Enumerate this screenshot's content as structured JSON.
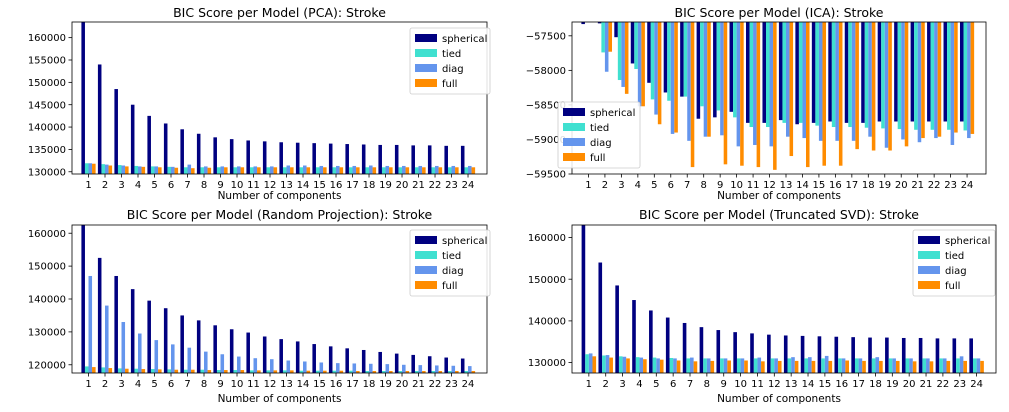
{
  "chart_data": [
    {
      "type": "bar",
      "title": "BIC Score per Model (PCA): Stroke",
      "xlabel": "Number of components",
      "ylabel": "",
      "categories": [
        "1",
        "2",
        "3",
        "4",
        "5",
        "6",
        "7",
        "8",
        "9",
        "10",
        "11",
        "12",
        "13",
        "14",
        "15",
        "16",
        "17",
        "18",
        "19",
        "20",
        "21",
        "22",
        "23",
        "24"
      ],
      "ylim": [
        129500,
        163500
      ],
      "yticks": [
        130000,
        135000,
        140000,
        145000,
        150000,
        155000,
        160000
      ],
      "legend_position": "top-right",
      "grid": false,
      "best_marker": {
        "label": "*",
        "series": "full",
        "index": 5,
        "value": 132800
      },
      "series": [
        {
          "name": "spherical",
          "color": "#000080",
          "values": [
            163500,
            154000,
            148500,
            145000,
            142500,
            140800,
            139500,
            138500,
            137700,
            137300,
            137000,
            136800,
            136600,
            136500,
            136400,
            136300,
            136200,
            136100,
            136000,
            136000,
            135900,
            135900,
            135800,
            135800
          ]
        },
        {
          "name": "tied",
          "color": "#40e0d0",
          "values": [
            131900,
            131700,
            131500,
            131300,
            131200,
            131100,
            131000,
            131000,
            131000,
            131000,
            131000,
            131000,
            131000,
            131000,
            131000,
            131000,
            131000,
            131000,
            131000,
            131000,
            131000,
            131000,
            131000,
            131000
          ]
        },
        {
          "name": "diag",
          "color": "#6495ed",
          "values": [
            131900,
            131600,
            131400,
            131200,
            131200,
            131100,
            131600,
            131200,
            131200,
            131200,
            131200,
            131200,
            131400,
            131400,
            131300,
            131300,
            131300,
            131400,
            131300,
            131300,
            131300,
            131300,
            131300,
            131300
          ]
        },
        {
          "name": "full",
          "color": "#ff8c00",
          "values": [
            131800,
            131400,
            131200,
            131100,
            131000,
            130900,
            130800,
            130900,
            131000,
            131000,
            131000,
            131000,
            131000,
            131000,
            131000,
            131000,
            131000,
            131000,
            131000,
            131000,
            131000,
            131000,
            131000,
            131000
          ]
        }
      ]
    },
    {
      "type": "bar",
      "title": "BIC Score per Model (ICA): Stroke",
      "xlabel": "Number of components",
      "ylabel": "",
      "categories": [
        "1",
        "2",
        "3",
        "4",
        "5",
        "6",
        "7",
        "8",
        "9",
        "10",
        "11",
        "12",
        "13",
        "14",
        "15",
        "16",
        "17",
        "18",
        "19",
        "20",
        "21",
        "22",
        "23",
        "24"
      ],
      "ylim": [
        -59500,
        -57300
      ],
      "yticks": [
        -59500,
        -59000,
        -58500,
        -58000,
        -57500
      ],
      "legend_position": "center-left",
      "grid": false,
      "best_marker": {
        "label": "*",
        "series": "full",
        "index": 11,
        "value": -59440
      },
      "series": [
        {
          "name": "spherical",
          "color": "#000080",
          "values": [
            -57330,
            -57320,
            -57520,
            -57900,
            -58180,
            -58320,
            -58380,
            -58700,
            -58680,
            -58600,
            -58760,
            -58760,
            -58720,
            -58780,
            -58760,
            -58740,
            -58760,
            -58760,
            -58740,
            -58740,
            -58740,
            -58740,
            -58740,
            -58740
          ]
        },
        {
          "name": "tied",
          "color": "#40e0d0",
          "values": [
            -57300,
            -57740,
            -58140,
            -57980,
            -58420,
            -58440,
            -58380,
            -58520,
            -58580,
            -58680,
            -58820,
            -58820,
            -58760,
            -58760,
            -58800,
            -58820,
            -58820,
            -58830,
            -58840,
            -58850,
            -58860,
            -58860,
            -58860,
            -58870
          ]
        },
        {
          "name": "diag",
          "color": "#6495ed",
          "values": [
            -57300,
            -58020,
            -58240,
            -58520,
            -58640,
            -58920,
            -59020,
            -58960,
            -58940,
            -59100,
            -59080,
            -59100,
            -58960,
            -58980,
            -59020,
            -59020,
            -59020,
            -58960,
            -59120,
            -59000,
            -59040,
            -58980,
            -59080,
            -58980
          ]
        },
        {
          "name": "full",
          "color": "#ff8c00",
          "values": [
            -57300,
            -57730,
            -58340,
            -58520,
            -58780,
            -58900,
            -59400,
            -58960,
            -59360,
            -59380,
            -59400,
            -59440,
            -59240,
            -59400,
            -59380,
            -59380,
            -59140,
            -59160,
            -59160,
            -59100,
            -58980,
            -58960,
            -58900,
            -58920
          ]
        }
      ]
    },
    {
      "type": "bar",
      "title": "BIC Score per Model (Random Projection): Stroke",
      "xlabel": "Number of components",
      "ylabel": "",
      "categories": [
        "1",
        "2",
        "3",
        "4",
        "5",
        "6",
        "7",
        "8",
        "9",
        "10",
        "11",
        "12",
        "13",
        "14",
        "15",
        "16",
        "17",
        "18",
        "19",
        "20",
        "21",
        "22",
        "23",
        "24"
      ],
      "ylim": [
        117500,
        162500
      ],
      "yticks": [
        120000,
        130000,
        140000,
        150000,
        160000
      ],
      "legend_position": "top-right",
      "grid": false,
      "best_marker": {
        "label": "*",
        "series": "full",
        "index": 5,
        "value": 120000
      },
      "series": [
        {
          "name": "spherical",
          "color": "#000080",
          "values": [
            162500,
            152500,
            147000,
            143000,
            139500,
            137200,
            135000,
            133500,
            132000,
            130800,
            129800,
            128600,
            127800,
            127100,
            126300,
            125600,
            125000,
            124500,
            123900,
            123400,
            123000,
            122600,
            122200,
            121900
          ]
        },
        {
          "name": "tied",
          "color": "#40e0d0",
          "values": [
            119500,
            119200,
            118900,
            118800,
            118700,
            118600,
            118500,
            118500,
            118400,
            118400,
            118300,
            118300,
            118300,
            118200,
            118200,
            118200,
            118200,
            118100,
            118100,
            118100,
            118100,
            118100,
            118100,
            118100
          ]
        },
        {
          "name": "diag",
          "color": "#6495ed",
          "values": [
            147000,
            138000,
            133000,
            129500,
            127500,
            126200,
            125200,
            124000,
            123200,
            122500,
            122000,
            121700,
            121300,
            121000,
            120700,
            120500,
            120400,
            120300,
            120200,
            120000,
            119900,
            119800,
            119700,
            119600
          ]
        },
        {
          "name": "full",
          "color": "#ff8c00",
          "values": [
            119300,
            119000,
            118800,
            118700,
            118600,
            118500,
            118500,
            118400,
            118400,
            118400,
            118300,
            118300,
            118300,
            118200,
            118200,
            118200,
            118100,
            118100,
            118100,
            118100,
            118100,
            118100,
            118100,
            118100
          ]
        }
      ]
    },
    {
      "type": "bar",
      "title": "BIC Score per Model (Truncated SVD): Stroke",
      "xlabel": "Number of components",
      "ylabel": "",
      "categories": [
        "1",
        "2",
        "3",
        "4",
        "5",
        "6",
        "7",
        "8",
        "9",
        "10",
        "11",
        "12",
        "13",
        "14",
        "15",
        "16",
        "17",
        "18",
        "19",
        "20",
        "21",
        "22",
        "23",
        "24"
      ],
      "ylim": [
        127500,
        163000
      ],
      "yticks": [
        130000,
        140000,
        150000,
        160000
      ],
      "legend_position": "top-right",
      "grid": false,
      "best_marker": {
        "label": "*",
        "series": "full",
        "index": 19,
        "value": 131000
      },
      "series": [
        {
          "name": "spherical",
          "color": "#000080",
          "values": [
            163000,
            154000,
            148500,
            145000,
            142500,
            140800,
            139500,
            138500,
            137800,
            137300,
            137000,
            136700,
            136500,
            136400,
            136300,
            136200,
            136100,
            136000,
            136000,
            135900,
            135900,
            135800,
            135800,
            135800
          ]
        },
        {
          "name": "tied",
          "color": "#40e0d0",
          "values": [
            132000,
            131700,
            131500,
            131300,
            131200,
            131100,
            131000,
            131000,
            131000,
            131000,
            131000,
            131000,
            131000,
            131000,
            131000,
            131000,
            131000,
            131000,
            131000,
            131000,
            131000,
            131000,
            131000,
            131000
          ]
        },
        {
          "name": "diag",
          "color": "#6495ed",
          "values": [
            132200,
            131800,
            131400,
            131200,
            131000,
            131000,
            131200,
            131000,
            131000,
            131000,
            131200,
            131000,
            131300,
            131300,
            131600,
            131000,
            131000,
            131300,
            131000,
            131000,
            131000,
            131000,
            131500,
            131000
          ]
        },
        {
          "name": "full",
          "color": "#ff8c00",
          "values": [
            131500,
            131200,
            131000,
            130800,
            130700,
            130500,
            130300,
            130400,
            130500,
            130500,
            130300,
            130400,
            130400,
            130400,
            130400,
            130500,
            130400,
            130400,
            130400,
            130300,
            130300,
            130400,
            130400,
            130400
          ]
        }
      ]
    }
  ]
}
